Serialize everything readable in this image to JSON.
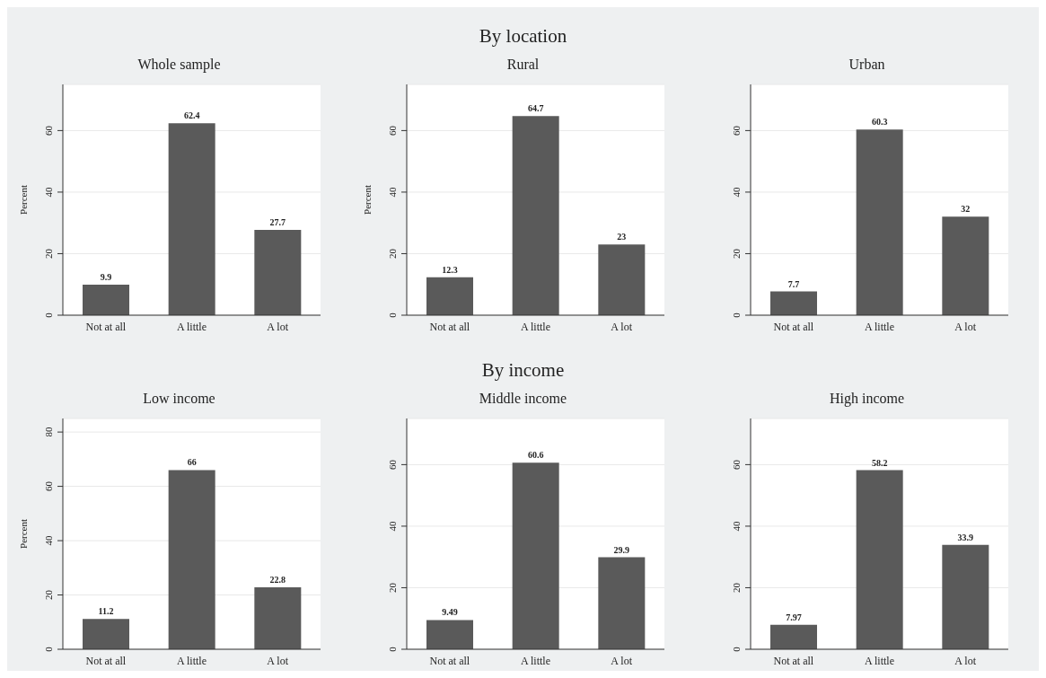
{
  "chart_data": [
    {
      "type": "bar",
      "annotations": [
        "By location"
      ],
      "title": "Whole sample",
      "ylabel": "Percent",
      "categories": [
        "Not at all",
        "A little",
        "A lot"
      ],
      "values": [
        9.9,
        62.4,
        27.7
      ],
      "color": "#5a5a5a",
      "ylim": [
        0,
        75
      ],
      "yticks": [
        0,
        20,
        40,
        60
      ],
      "grid": "y",
      "data_labels": true
    },
    {
      "type": "bar",
      "title": "Rural",
      "ylabel": "Percent",
      "categories": [
        "Not at all",
        "A little",
        "A lot"
      ],
      "values": [
        12.3,
        64.7,
        23
      ],
      "color": "#5a5a5a",
      "ylim": [
        0,
        75
      ],
      "yticks": [
        0,
        20,
        40,
        60
      ],
      "grid": "y",
      "data_labels": true
    },
    {
      "type": "bar",
      "title": "Urban",
      "categories": [
        "Not at all",
        "A little",
        "A lot"
      ],
      "values": [
        7.7,
        60.3,
        32
      ],
      "color": "#5a5a5a",
      "ylim": [
        0,
        75
      ],
      "yticks": [
        0,
        20,
        40,
        60
      ],
      "grid": "y",
      "data_labels": true
    },
    {
      "type": "bar",
      "annotations": [
        "By income"
      ],
      "title": "Low income",
      "ylabel": "Percent",
      "categories": [
        "Not at all",
        "A little",
        "A lot"
      ],
      "values": [
        11.2,
        66,
        22.8
      ],
      "color": "#5a5a5a",
      "ylim": [
        0,
        85
      ],
      "yticks": [
        0,
        20,
        40,
        60,
        80
      ],
      "grid": "y",
      "data_labels": true
    },
    {
      "type": "bar",
      "title": "Middle income",
      "categories": [
        "Not at all",
        "A little",
        "A lot"
      ],
      "values": [
        9.49,
        60.6,
        29.9
      ],
      "color": "#5a5a5a",
      "ylim": [
        0,
        75
      ],
      "yticks": [
        0,
        20,
        40,
        60
      ],
      "grid": "y",
      "data_labels": true
    },
    {
      "type": "bar",
      "title": "High income",
      "categories": [
        "Not at all",
        "A little",
        "A lot"
      ],
      "values": [
        7.97,
        58.2,
        33.9
      ],
      "color": "#5a5a5a",
      "ylim": [
        0,
        75
      ],
      "yticks": [
        0,
        20,
        40,
        60
      ],
      "grid": "y",
      "data_labels": true
    }
  ]
}
